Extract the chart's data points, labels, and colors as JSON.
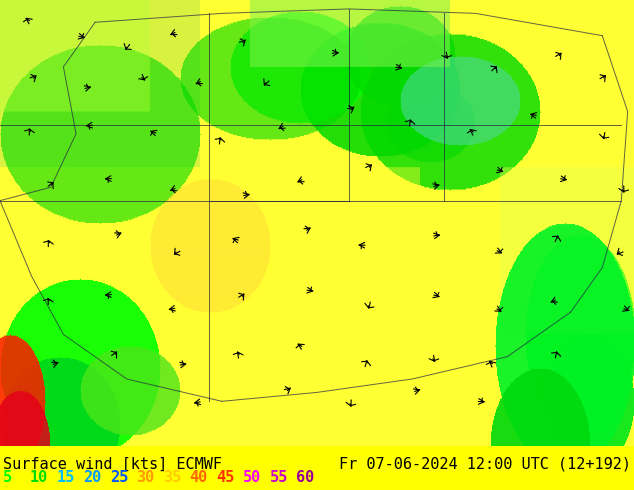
{
  "title_left": "Surface wind [kts] ECMWF",
  "title_right": "Fr 07-06-2024 12:00 UTC (12+192)",
  "legend_values": [
    5,
    10,
    15,
    20,
    25,
    30,
    35,
    40,
    45,
    50,
    55,
    60
  ],
  "legend_colors": [
    "#00ff00",
    "#00dd00",
    "#00bbff",
    "#0099ff",
    "#0055ff",
    "#ff9900",
    "#ffcc00",
    "#ff6600",
    "#ff3300",
    "#ff00ff",
    "#cc00cc",
    "#990099"
  ],
  "background_color": "#ffff00",
  "map_bg": "#ffff55",
  "figsize": [
    6.34,
    4.9
  ],
  "dpi": 100,
  "bottom_bar_color": "#ffff00",
  "text_color": "#000000",
  "font_size_label": 11,
  "font_size_legend": 11
}
